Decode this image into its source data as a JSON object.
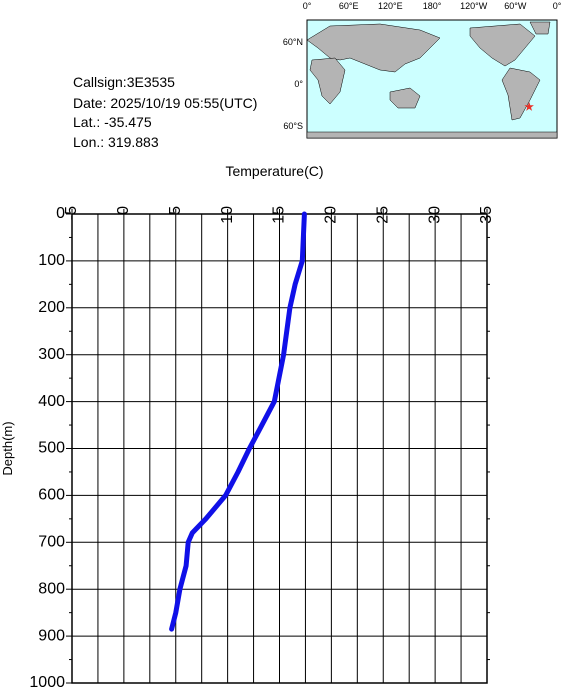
{
  "info": {
    "callsign": "Callsign:3E3535",
    "date": "Date:  2025/10/19 05:55(UTC)",
    "lat_text": "Lat.:  -35.475",
    "lon_text": "Lon.:  319.883",
    "lat": -35.475,
    "lon": 319.883
  },
  "map": {
    "lon_labels": [
      "0°",
      "60°E",
      "120°E",
      "180°",
      "120°W",
      "60°W",
      "0°"
    ],
    "lat_labels": [
      "60°N",
      "0°",
      "60°S"
    ],
    "marker_color": "#e8322a"
  },
  "chart_data": {
    "type": "line",
    "xlabel": "Temperature(C)",
    "ylabel": "Depth(m)",
    "x": [
      0,
      100,
      150,
      200,
      300,
      400,
      450,
      500,
      550,
      600,
      650,
      680,
      700,
      750,
      800,
      850,
      885
    ],
    "series": [
      {
        "name": "Temperature",
        "color": "#1010e8",
        "values": [
          17.4,
          17.2,
          16.5,
          16.0,
          15.4,
          14.5,
          13.3,
          12.1,
          11.0,
          9.8,
          7.9,
          6.6,
          6.2,
          6.0,
          5.4,
          5.0,
          4.6
        ]
      }
    ],
    "tlim": [
      -5,
      35
    ],
    "tticks": [
      -5,
      0,
      5,
      10,
      15,
      20,
      25,
      30,
      35
    ],
    "depthlim": [
      0,
      1000
    ],
    "depthticks": [
      0,
      100,
      200,
      300,
      400,
      500,
      600,
      700,
      800,
      900,
      1000
    ],
    "grid": true
  }
}
